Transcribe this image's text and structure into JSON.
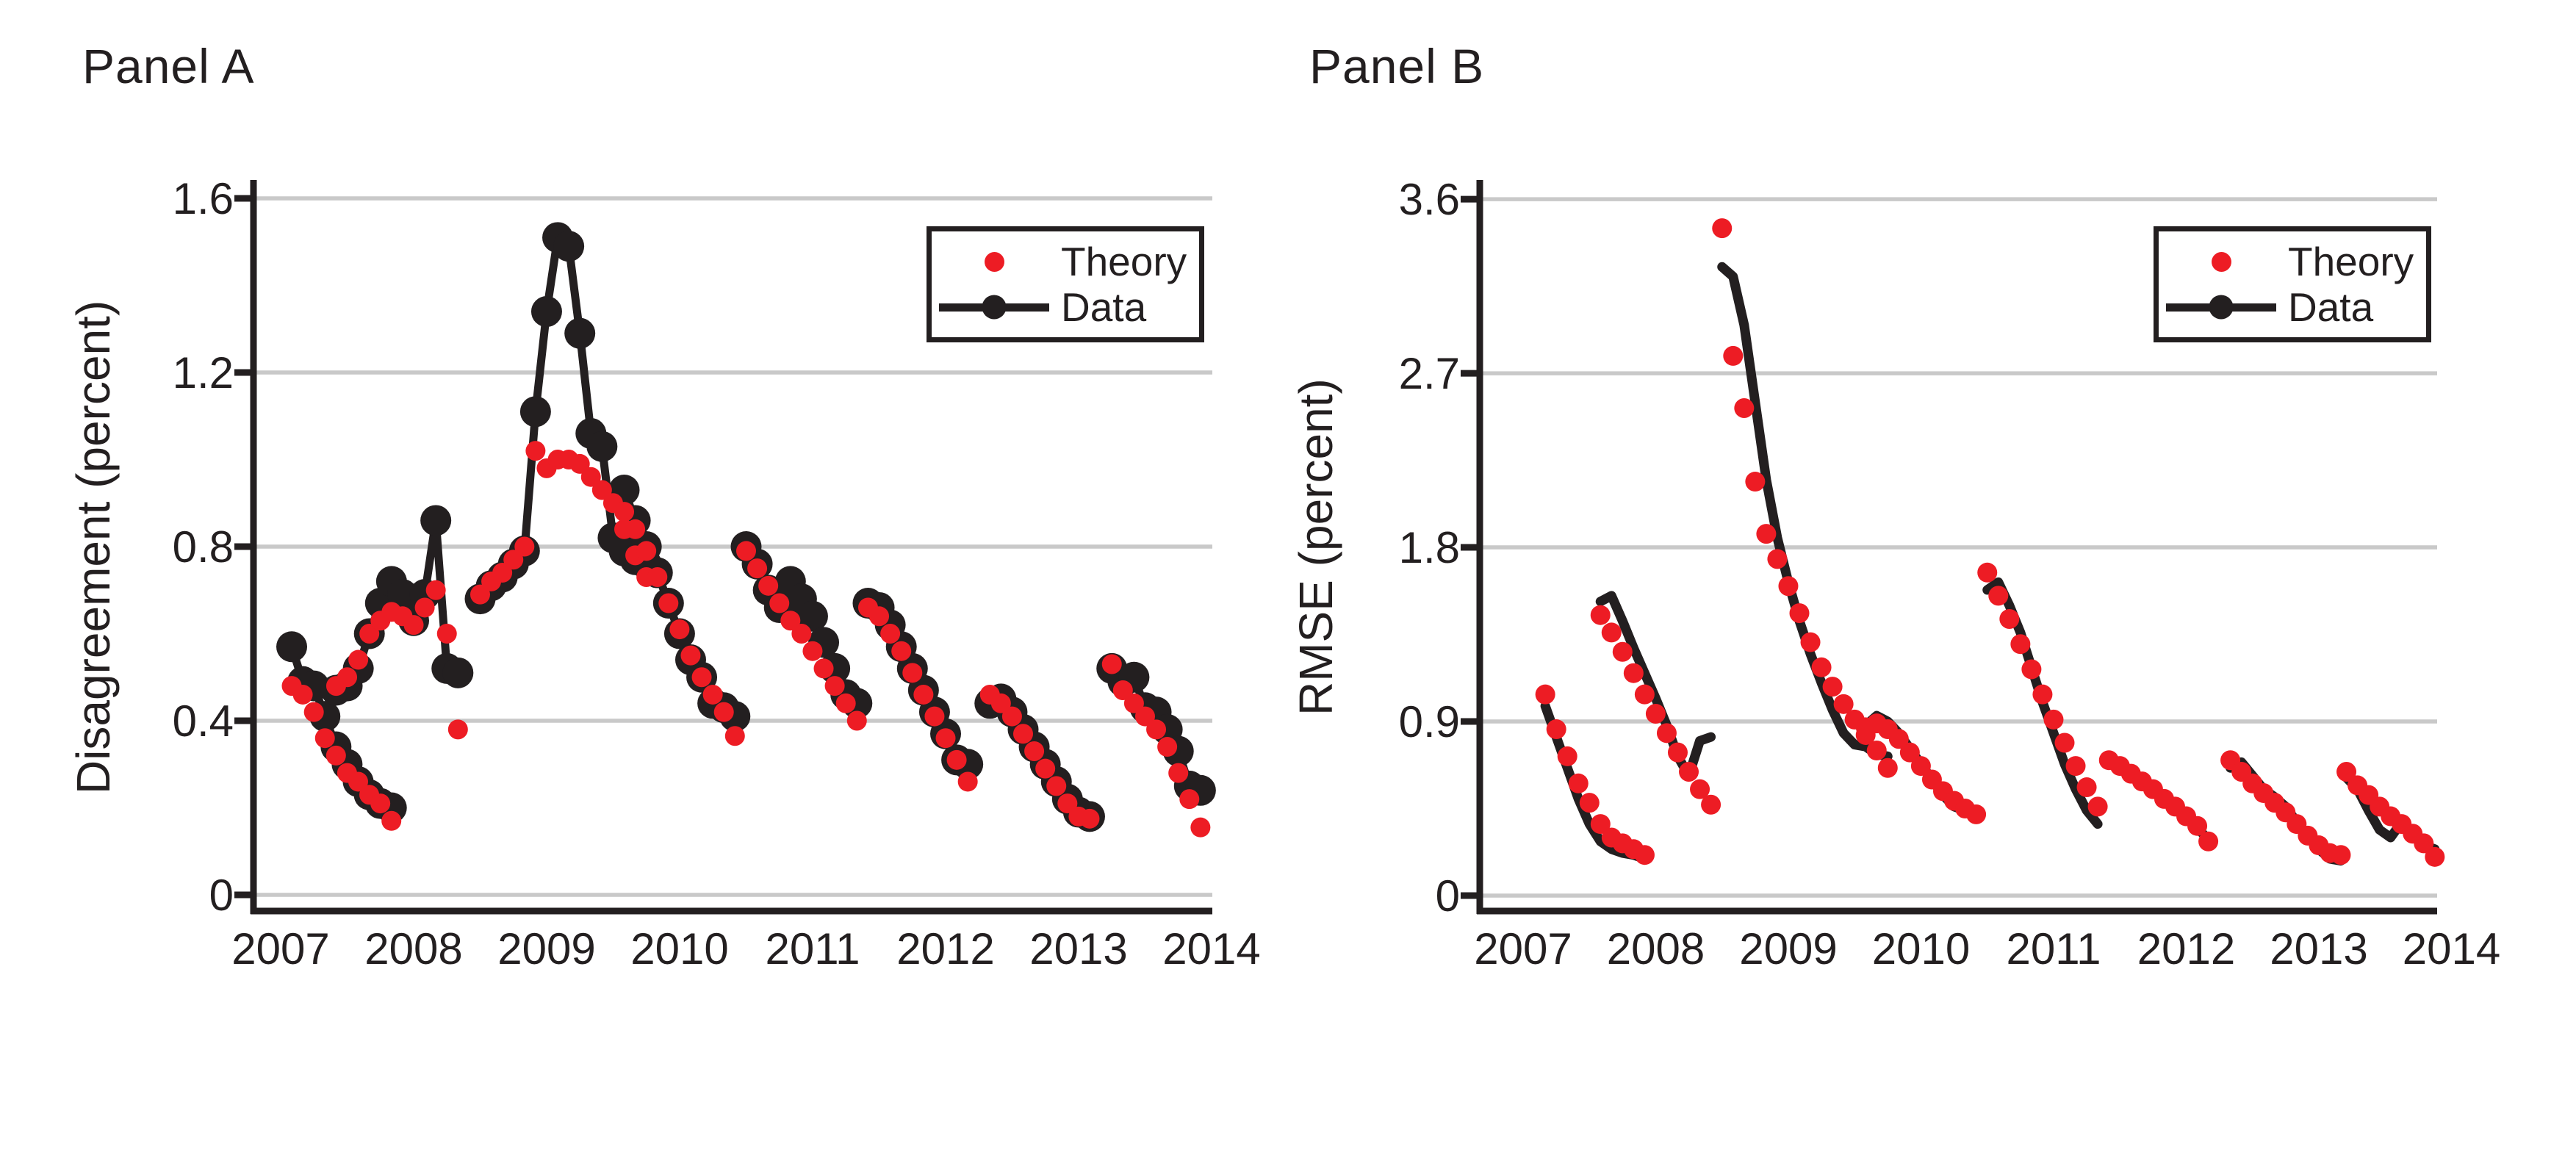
{
  "figure": {
    "panels": [
      {
        "title": "Panel A",
        "ylabel": "Disagreement (percent)",
        "legend": {
          "theory_label": "Theory",
          "data_label": "Data"
        }
      },
      {
        "title": "Panel B",
        "ylabel": "RMSE (percent)",
        "legend": {
          "theory_label": "Theory",
          "data_label": "Data"
        }
      }
    ]
  },
  "colors": {
    "theory": "#ED1C24",
    "data": "#231F20",
    "grid": "#C9C9C9",
    "axis": "#231F20",
    "background": "#FFFFFF"
  },
  "chart_data": [
    {
      "type": "line",
      "title": "Panel A",
      "ylabel": "Disagreement (percent)",
      "xlabel": "",
      "ylim": [
        0,
        1.68
      ],
      "xlim": [
        2006.8,
        2014.02
      ],
      "yticks": [
        0,
        0.4,
        0.8,
        1.2,
        1.6
      ],
      "ytick_labels": [
        "0",
        "0.4",
        "0.8",
        "1.2",
        "1.6"
      ],
      "xticks": [
        2007,
        2008,
        2009,
        2010,
        2011,
        2012,
        2013,
        2014
      ],
      "grid": "horizontal",
      "legend_position": "upper right inside",
      "legend_entries": [
        "Theory",
        "Data"
      ],
      "series": [
        {
          "name": "Data",
          "style": "line+marker",
          "color": "data",
          "segments": [
            {
              "x_start": 2007.083,
              "x_step_years": 0.0833,
              "values": [
                0.57,
                0.49,
                0.48,
                0.41,
                0.34,
                0.3,
                0.26,
                0.23,
                0.21,
                0.2
              ]
            },
            {
              "x_start": 2007.417,
              "x_step_years": 0.0833,
              "values": [
                0.47,
                0.48,
                0.52,
                0.6,
                0.67,
                0.72,
                0.69,
                0.63,
                0.69,
                0.86,
                0.52,
                0.51
              ]
            },
            {
              "x_start": 2008.5,
              "x_step_years": 0.0833,
              "values": [
                0.68,
                0.71,
                0.73,
                0.76,
                0.79,
                1.11,
                1.34,
                1.51,
                1.49,
                1.29,
                1.06,
                1.03,
                0.82,
                0.79,
                0.77,
                0.76
              ]
            },
            {
              "x_start": 2009.583,
              "x_step_years": 0.0833,
              "values": [
                0.93,
                0.86,
                0.8,
                0.74,
                0.67,
                0.6,
                0.54,
                0.5,
                0.44,
                0.43,
                0.41
              ]
            },
            {
              "x_start": 2010.5,
              "x_step_years": 0.0833,
              "values": [
                0.8,
                0.76,
                0.7,
                0.66,
                0.72,
                0.68,
                0.64,
                0.58,
                0.52,
                0.46,
                0.44
              ]
            },
            {
              "x_start": 2011.417,
              "x_step_years": 0.0833,
              "values": [
                0.67,
                0.66,
                0.62,
                0.57,
                0.52,
                0.47,
                0.42,
                0.37,
                0.31,
                0.3
              ]
            },
            {
              "x_start": 2012.333,
              "x_step_years": 0.0833,
              "values": [
                0.44,
                0.45,
                0.42,
                0.38,
                0.34,
                0.3,
                0.26,
                0.22,
                0.19,
                0.18
              ]
            },
            {
              "x_start": 2013.25,
              "x_step_years": 0.0833,
              "values": [
                0.52,
                0.49,
                0.5,
                0.43,
                0.42,
                0.38,
                0.33,
                0.25,
                0.24
              ]
            }
          ]
        },
        {
          "name": "Theory",
          "style": "scatter",
          "color": "theory",
          "segments": [
            {
              "x_start": 2007.083,
              "x_step_years": 0.0833,
              "values": [
                0.48,
                0.46,
                0.42,
                0.36,
                0.32,
                0.28,
                0.26,
                0.23,
                0.21,
                0.17
              ]
            },
            {
              "x_start": 2007.417,
              "x_step_years": 0.0833,
              "values": [
                0.48,
                0.5,
                0.54,
                0.6,
                0.63,
                0.65,
                0.64,
                0.62,
                0.66,
                0.7,
                0.6,
                0.38
              ]
            },
            {
              "x_start": 2008.5,
              "x_step_years": 0.0833,
              "values": [
                0.69,
                0.72,
                0.74,
                0.77,
                0.8,
                1.02,
                0.98,
                1.0,
                1.0,
                0.99,
                0.96,
                0.93,
                0.9,
                0.84,
                0.78,
                0.73
              ]
            },
            {
              "x_start": 2009.583,
              "x_step_years": 0.0833,
              "values": [
                0.88,
                0.84,
                0.79,
                0.73,
                0.67,
                0.61,
                0.55,
                0.5,
                0.46,
                0.42,
                0.365
              ]
            },
            {
              "x_start": 2010.5,
              "x_step_years": 0.0833,
              "values": [
                0.79,
                0.75,
                0.71,
                0.67,
                0.63,
                0.6,
                0.56,
                0.52,
                0.48,
                0.44,
                0.4
              ]
            },
            {
              "x_start": 2011.417,
              "x_step_years": 0.0833,
              "values": [
                0.66,
                0.64,
                0.6,
                0.56,
                0.51,
                0.46,
                0.41,
                0.36,
                0.31,
                0.26
              ]
            },
            {
              "x_start": 2012.333,
              "x_step_years": 0.0833,
              "values": [
                0.46,
                0.44,
                0.41,
                0.37,
                0.33,
                0.29,
                0.25,
                0.21,
                0.18,
                0.175
              ]
            },
            {
              "x_start": 2013.25,
              "x_step_years": 0.0833,
              "values": [
                0.53,
                0.47,
                0.44,
                0.41,
                0.38,
                0.34,
                0.28,
                0.22,
                0.155
              ]
            }
          ]
        }
      ]
    },
    {
      "type": "line",
      "title": "Panel B",
      "ylabel": "RMSE (percent)",
      "xlabel": "",
      "ylim": [
        0,
        3.78
      ],
      "xlim": [
        2006.8,
        2014.02
      ],
      "yticks": [
        0,
        0.9,
        1.8,
        2.7,
        3.6
      ],
      "ytick_labels": [
        "0",
        "0.9",
        "1.8",
        "2.7",
        "3.6"
      ],
      "xticks": [
        2007,
        2008,
        2009,
        2010,
        2011,
        2012,
        2013,
        2014
      ],
      "grid": "horizontal",
      "legend_position": "upper right inside",
      "legend_entries": [
        "Theory",
        "Data"
      ],
      "series": [
        {
          "name": "Data",
          "style": "line",
          "color": "data",
          "segments": [
            {
              "x_start": 2007.167,
              "x_step_years": 0.0833,
              "values": [
                0.98,
                0.82,
                0.66,
                0.5,
                0.37,
                0.28,
                0.24,
                0.22,
                0.21,
                0.19
              ]
            },
            {
              "x_start": 2007.583,
              "x_step_years": 0.0833,
              "values": [
                1.52,
                1.55,
                1.42,
                1.28,
                1.15,
                1.02,
                0.88,
                0.72,
                0.62,
                0.8,
                0.82
              ]
            },
            {
              "x_start": 2008.5,
              "x_step_years": 0.0833,
              "values": [
                3.25,
                3.2,
                2.95,
                2.55,
                2.15,
                1.85,
                1.62,
                1.42,
                1.25,
                1.1,
                0.96,
                0.84,
                0.78,
                0.77,
                0.73,
                0.72
              ]
            },
            {
              "x_start": 2009.583,
              "x_step_years": 0.0833,
              "values": [
                0.88,
                0.93,
                0.9,
                0.84,
                0.76,
                0.68,
                0.6,
                0.52,
                0.46,
                0.44,
                0.42
              ]
            },
            {
              "x_start": 2010.5,
              "x_step_years": 0.0833,
              "values": [
                1.58,
                1.62,
                1.5,
                1.36,
                1.18,
                1.0,
                0.84,
                0.68,
                0.55,
                0.44,
                0.37
              ]
            },
            {
              "x_start": 2011.417,
              "x_step_years": 0.0833,
              "values": [
                0.69,
                0.67,
                0.63,
                0.59,
                0.54,
                0.5,
                0.45,
                0.4,
                0.35,
                0.29
              ]
            },
            {
              "x_start": 2012.333,
              "x_step_years": 0.0833,
              "values": [
                0.66,
                0.69,
                0.62,
                0.55,
                0.51,
                0.46,
                0.38,
                0.31,
                0.24,
                0.19,
                0.18
              ]
            },
            {
              "x_start": 2013.208,
              "x_step_years": 0.0833,
              "values": [
                0.61,
                0.55,
                0.44,
                0.34,
                0.3,
                0.38,
                0.33,
                0.26,
                0.24
              ]
            }
          ]
        },
        {
          "name": "Theory",
          "style": "scatter",
          "color": "theory",
          "segments": [
            {
              "x_start": 2007.167,
              "x_step_years": 0.0833,
              "values": [
                1.04,
                0.86,
                0.72,
                0.58,
                0.48,
                0.37,
                0.3,
                0.27,
                0.24,
                0.21
              ]
            },
            {
              "x_start": 2007.583,
              "x_step_years": 0.0833,
              "values": [
                1.45,
                1.36,
                1.26,
                1.15,
                1.04,
                0.94,
                0.84,
                0.74,
                0.64,
                0.55,
                0.47
              ]
            },
            {
              "x_start": 2008.5,
              "x_step_years": 0.0833,
              "values": [
                3.45,
                2.79,
                2.52,
                2.14,
                1.87,
                1.74,
                1.6,
                1.46,
                1.31,
                1.18,
                1.08,
                0.99,
                0.91,
                0.83,
                0.75,
                0.66
              ]
            },
            {
              "x_start": 2009.583,
              "x_step_years": 0.0833,
              "values": [
                0.87,
                0.89,
                0.86,
                0.81,
                0.74,
                0.67,
                0.6,
                0.54,
                0.49,
                0.45,
                0.42
              ]
            },
            {
              "x_start": 2010.5,
              "x_step_years": 0.0833,
              "values": [
                1.67,
                1.55,
                1.43,
                1.3,
                1.17,
                1.04,
                0.91,
                0.79,
                0.67,
                0.56,
                0.46
              ]
            },
            {
              "x_start": 2011.417,
              "x_step_years": 0.0833,
              "values": [
                0.7,
                0.67,
                0.63,
                0.59,
                0.55,
                0.5,
                0.46,
                0.41,
                0.36,
                0.28
              ]
            },
            {
              "x_start": 2012.333,
              "x_step_years": 0.0833,
              "values": [
                0.7,
                0.64,
                0.58,
                0.53,
                0.48,
                0.43,
                0.37,
                0.31,
                0.26,
                0.22,
                0.21
              ]
            },
            {
              "x_start": 2013.208,
              "x_step_years": 0.0833,
              "values": [
                0.64,
                0.57,
                0.52,
                0.46,
                0.41,
                0.37,
                0.32,
                0.27,
                0.2
              ]
            }
          ]
        }
      ]
    }
  ]
}
